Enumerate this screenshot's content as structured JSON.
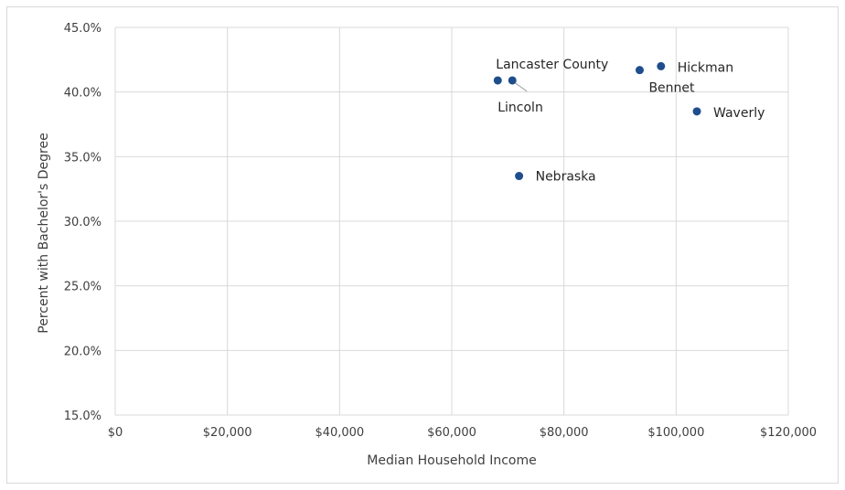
{
  "chart_data": {
    "type": "scatter",
    "title": "",
    "xlabel": "Median Household Income",
    "ylabel": "Percent with Bachelor's Degree",
    "xlim": [
      0,
      120000
    ],
    "ylim": [
      15.0,
      45.0
    ],
    "x_ticks": [
      0,
      20000,
      40000,
      60000,
      80000,
      100000,
      120000
    ],
    "x_tick_labels": [
      "$0",
      "$20,000",
      "$40,000",
      "$60,000",
      "$80,000",
      "$100,000",
      "$120,000"
    ],
    "y_ticks": [
      15,
      20,
      25,
      30,
      35,
      40,
      45
    ],
    "y_tick_labels": [
      "15.0%",
      "20.0%",
      "25.0%",
      "30.0%",
      "35.0%",
      "40.0%",
      "45.0%"
    ],
    "grid": true,
    "marker_color": "#1f4e8c",
    "points": [
      {
        "label": "Lancaster County",
        "x": 68200,
        "y": 40.9
      },
      {
        "label": "Lincoln",
        "x": 70800,
        "y": 40.9
      },
      {
        "label": "Nebraska",
        "x": 72000,
        "y": 33.5
      },
      {
        "label": "Bennet",
        "x": 93500,
        "y": 41.7
      },
      {
        "label": "Hickman",
        "x": 97300,
        "y": 42.0
      },
      {
        "label": "Waverly",
        "x": 103700,
        "y": 38.5
      }
    ]
  }
}
